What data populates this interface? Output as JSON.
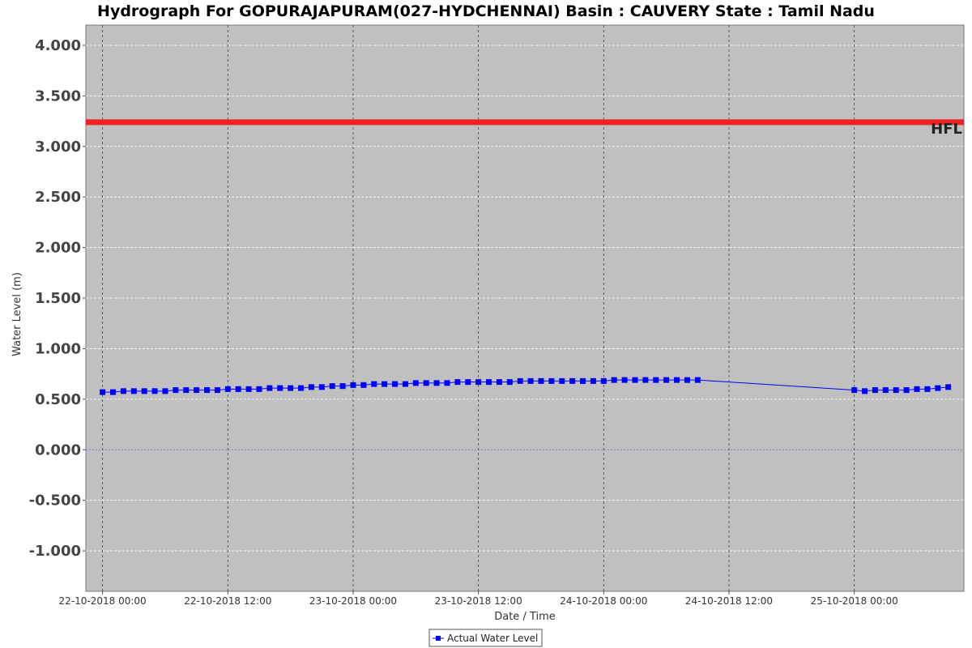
{
  "chart_data": {
    "type": "line",
    "title": "Hydrograph For GOPURAJAPURAM(027-HYDCHENNAI) Basin : CAUVERY State : Tamil Nadu",
    "xlabel": "Date / Time",
    "ylabel": "Water Level (m)",
    "ylim": [
      -1.4,
      4.2
    ],
    "yticks": [
      4.0,
      3.5,
      3.0,
      2.5,
      2.0,
      1.5,
      1.0,
      0.5,
      0.0,
      -0.5,
      -1.0
    ],
    "ytick_labels": [
      "4.000",
      "3.500",
      "3.000",
      "2.500",
      "2.000",
      "1.500",
      "1.000",
      "0.500",
      "0.000",
      "-0.500",
      "-1.000"
    ],
    "x_unit": "hours after 22-10-2018 00:00",
    "xlim": [
      -1.6,
      82.5
    ],
    "xticks": [
      0,
      12,
      24,
      36,
      48,
      60,
      72
    ],
    "xtick_labels": [
      "22-10-2018 00:00",
      "22-10-2018 12:00",
      "23-10-2018 00:00",
      "23-10-2018 12:00",
      "24-10-2018 00:00",
      "24-10-2018 12:00",
      "25-10-2018 00:00"
    ],
    "grid": true,
    "hfl": {
      "label": "HFL",
      "value": 3.24,
      "color": "#ee2222"
    },
    "zero_line_color": "#6666dd",
    "series": [
      {
        "name": "Actual Water Level",
        "color": "#0000ff",
        "x": [
          0,
          1,
          2,
          3,
          4,
          5,
          6,
          7,
          8,
          9,
          10,
          11,
          12,
          13,
          14,
          15,
          16,
          17,
          18,
          19,
          20,
          21,
          22,
          23,
          24,
          25,
          26,
          27,
          28,
          29,
          30,
          31,
          32,
          33,
          34,
          35,
          36,
          37,
          38,
          39,
          40,
          41,
          42,
          43,
          44,
          45,
          46,
          47,
          48,
          49,
          50,
          51,
          52,
          53,
          54,
          55,
          56,
          57,
          72,
          73,
          74,
          75,
          76,
          77,
          78,
          79,
          80,
          81
        ],
        "y": [
          0.57,
          0.57,
          0.58,
          0.58,
          0.58,
          0.58,
          0.58,
          0.59,
          0.59,
          0.59,
          0.59,
          0.59,
          0.6,
          0.6,
          0.6,
          0.6,
          0.61,
          0.61,
          0.61,
          0.61,
          0.62,
          0.62,
          0.63,
          0.63,
          0.64,
          0.64,
          0.65,
          0.65,
          0.65,
          0.65,
          0.66,
          0.66,
          0.66,
          0.66,
          0.67,
          0.67,
          0.67,
          0.67,
          0.67,
          0.67,
          0.68,
          0.68,
          0.68,
          0.68,
          0.68,
          0.68,
          0.68,
          0.68,
          0.68,
          0.69,
          0.69,
          0.69,
          0.69,
          0.69,
          0.69,
          0.69,
          0.69,
          0.69,
          0.59,
          0.58,
          0.59,
          0.59,
          0.59,
          0.59,
          0.6,
          0.6,
          0.61,
          0.62
        ]
      }
    ],
    "legend": {
      "placement": "bottom-center"
    }
  }
}
